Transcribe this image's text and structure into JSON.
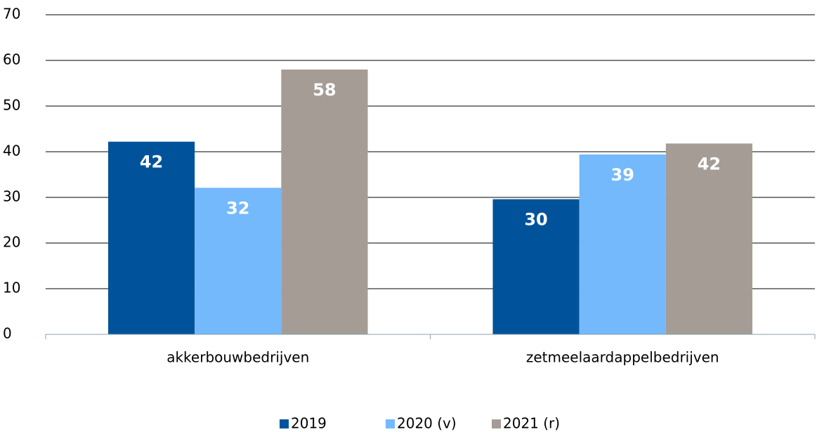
{
  "chart_data": {
    "type": "bar",
    "categories": [
      "akkerbouwbedrijven",
      "zetmeelaardappelbedrijven"
    ],
    "series": [
      {
        "name": "2019",
        "color": "#00539b",
        "values": [
          42.2,
          29.6
        ],
        "value_labels": [
          "42",
          "30"
        ]
      },
      {
        "name": "2020 (v)",
        "color": "#74b9fc",
        "values": [
          32.1,
          39.4
        ],
        "value_labels": [
          "32",
          "39"
        ]
      },
      {
        "name": "2021 (r)",
        "color": "#a59d95",
        "values": [
          58,
          41.8
        ],
        "value_labels": [
          "58",
          "42"
        ]
      }
    ],
    "ylim": [
      0,
      70
    ],
    "yticks": [
      0,
      10,
      20,
      30,
      40,
      50,
      60,
      70
    ],
    "grid": true,
    "legend": "bottom"
  }
}
